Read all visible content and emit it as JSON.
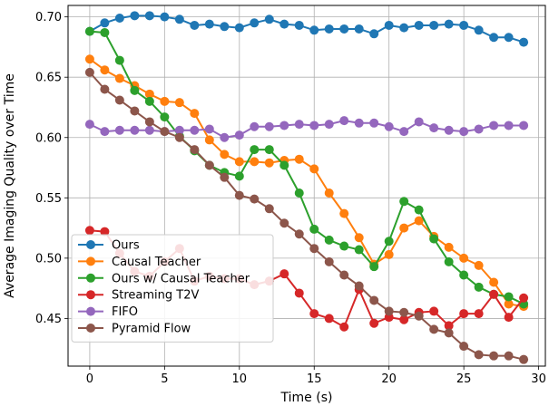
{
  "chart_data": {
    "type": "line",
    "xlabel": "Time (s)",
    "ylabel": "Average Imaging Quality over Time",
    "xlim": [
      -1.45,
      30.45
    ],
    "ylim": [
      0.4105,
      0.7095
    ],
    "xticks": [
      0,
      5,
      10,
      15,
      20,
      25,
      30
    ],
    "yticks": [
      0.45,
      0.5,
      0.55,
      0.6,
      0.65,
      0.7
    ],
    "grid": true,
    "legend_position": "lower-left",
    "x": [
      0,
      1,
      2,
      3,
      4,
      5,
      6,
      7,
      8,
      9,
      10,
      11,
      12,
      13,
      14,
      15,
      16,
      17,
      18,
      19,
      20,
      21,
      22,
      23,
      24,
      25,
      26,
      27,
      28,
      29
    ],
    "series": [
      {
        "name": "Ours",
        "color": "#1f77b4",
        "values": [
          0.688,
          0.695,
          0.699,
          0.701,
          0.701,
          0.7,
          0.698,
          0.693,
          0.694,
          0.692,
          0.691,
          0.695,
          0.698,
          0.694,
          0.693,
          0.689,
          0.69,
          0.69,
          0.69,
          0.686,
          0.693,
          0.691,
          0.693,
          0.693,
          0.694,
          0.693,
          0.689,
          0.683,
          0.683,
          0.679
        ]
      },
      {
        "name": "Causal Teacher",
        "color": "#ff7f0e",
        "values": [
          0.665,
          0.656,
          0.649,
          0.643,
          0.636,
          0.63,
          0.629,
          0.62,
          0.598,
          0.586,
          0.58,
          0.58,
          0.579,
          0.581,
          0.582,
          0.574,
          0.554,
          0.537,
          0.517,
          0.495,
          0.503,
          0.525,
          0.531,
          0.518,
          0.509,
          0.5,
          0.494,
          0.48,
          0.462,
          0.46
        ]
      },
      {
        "name": "Ours w/ Causal Teacher",
        "color": "#2ca02c",
        "values": [
          0.688,
          0.687,
          0.664,
          0.639,
          0.63,
          0.617,
          0.601,
          0.589,
          0.577,
          0.571,
          0.568,
          0.59,
          0.59,
          0.577,
          0.554,
          0.524,
          0.515,
          0.51,
          0.507,
          0.493,
          0.514,
          0.547,
          0.54,
          0.516,
          0.497,
          0.486,
          0.476,
          0.47,
          0.468,
          0.462
        ]
      },
      {
        "name": "Streaming T2V",
        "color": "#d62728",
        "values": [
          0.523,
          0.522,
          0.504,
          0.489,
          0.485,
          0.497,
          0.508,
          0.481,
          0.485,
          0.483,
          0.483,
          0.478,
          0.481,
          0.487,
          0.471,
          0.454,
          0.45,
          0.443,
          0.474,
          0.446,
          0.451,
          0.449,
          0.455,
          0.456,
          0.444,
          0.454,
          0.454,
          0.47,
          0.451,
          0.467
        ]
      },
      {
        "name": "FIFO",
        "color": "#9467bd",
        "values": [
          0.611,
          0.605,
          0.606,
          0.606,
          0.606,
          0.605,
          0.606,
          0.606,
          0.607,
          0.6,
          0.602,
          0.609,
          0.609,
          0.61,
          0.611,
          0.61,
          0.611,
          0.614,
          0.612,
          0.612,
          0.609,
          0.605,
          0.613,
          0.608,
          0.606,
          0.605,
          0.607,
          0.61,
          0.61,
          0.61
        ]
      },
      {
        "name": "Pyramid Flow",
        "color": "#8c564b",
        "values": [
          0.654,
          0.64,
          0.631,
          0.622,
          0.613,
          0.605,
          0.6,
          0.59,
          0.577,
          0.567,
          0.552,
          0.549,
          0.541,
          0.529,
          0.52,
          0.508,
          0.497,
          0.486,
          0.477,
          0.465,
          0.456,
          0.455,
          0.452,
          0.441,
          0.438,
          0.427,
          0.42,
          0.419,
          0.419,
          0.416
        ]
      }
    ]
  }
}
